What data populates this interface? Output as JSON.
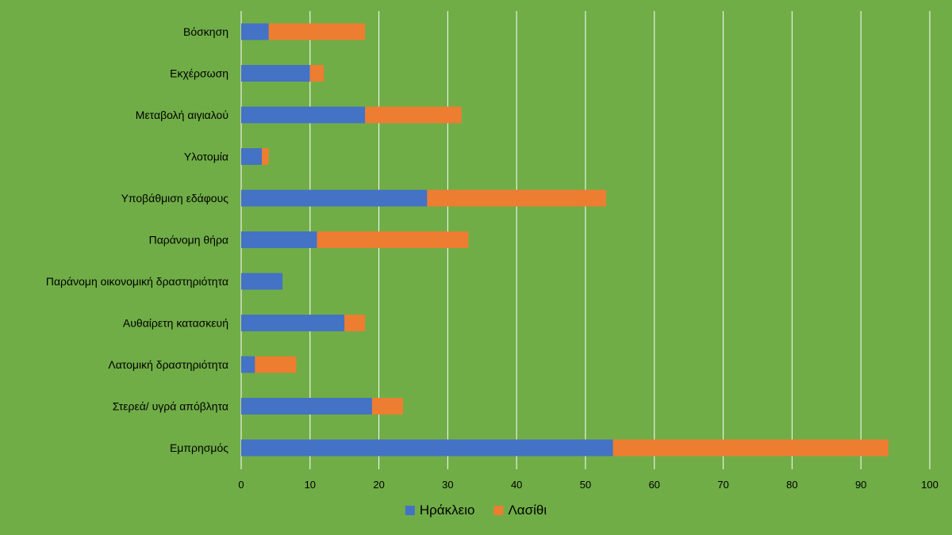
{
  "chart_data": {
    "type": "bar",
    "orientation": "horizontal",
    "stacked": true,
    "categories": [
      "Βόσκηση",
      "Εκχέρσωση",
      "Μεταβολή αιγιαλού",
      "Υλοτομία",
      "Υποβάθμιση εδάφους",
      "Παράνομη θήρα",
      "Παράνομη οικονομική δραστηριότητα",
      "Αυθαίρετη κατασκευή",
      "Λατομική δραστηριότητα",
      "Στερεά/ υγρά απόβλητα",
      "Εμπρησμός"
    ],
    "series": [
      {
        "name": "Ηράκλειο",
        "color": "#4472c4",
        "values": [
          4,
          10,
          18,
          3,
          27,
          11,
          6,
          15,
          2,
          19,
          54
        ]
      },
      {
        "name": "Λασίθι",
        "color": "#ed7d31",
        "values": [
          14,
          2,
          14,
          1,
          26,
          22,
          0,
          3,
          6,
          4.5,
          40
        ]
      }
    ],
    "xlim": [
      0,
      100
    ],
    "x_ticks": [
      "0",
      "10",
      "20",
      "30",
      "40",
      "50",
      "60",
      "70",
      "80",
      "90",
      "100"
    ],
    "grid": true,
    "legend_position": "bottom",
    "background_color": "#70ad47",
    "gridline_color": "#ffffff"
  }
}
